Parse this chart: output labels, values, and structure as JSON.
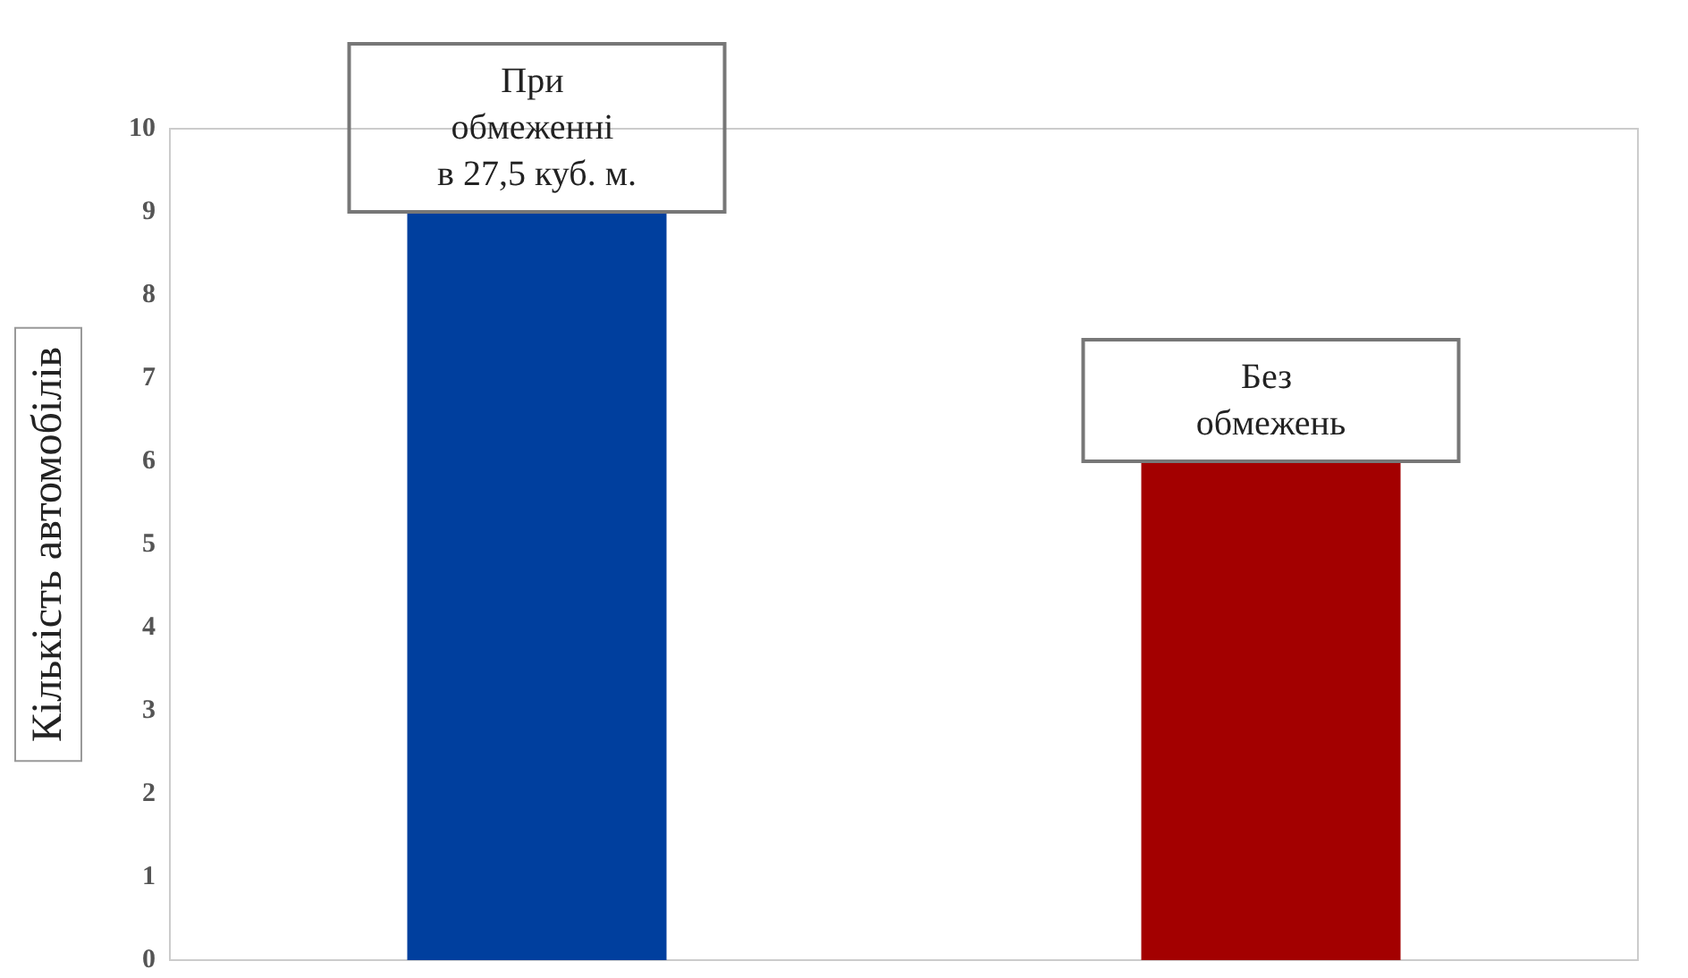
{
  "chart_data": {
    "type": "bar",
    "ylabel": "Кількість автомобілів",
    "categories": [
      "При обмеженні в 27,5 куб. м.",
      "Без обмежень"
    ],
    "values": [
      9,
      6
    ],
    "colors": [
      "#003f9e",
      "#a30000"
    ],
    "ylim": [
      0,
      10
    ],
    "yticks": [
      0,
      1,
      2,
      3,
      4,
      5,
      6,
      7,
      8,
      9,
      10
    ],
    "grid": false
  }
}
